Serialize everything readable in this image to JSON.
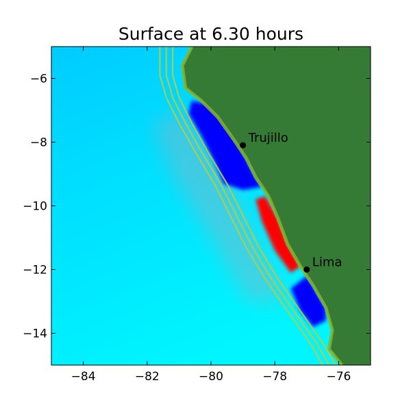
{
  "title": "Surface at 6.30 hours",
  "chart_data": {
    "type": "heatmap",
    "title": "Surface at 6.30 hours",
    "xlabel": "",
    "ylabel": "",
    "xlim": [
      -85,
      -75
    ],
    "ylim": [
      -15,
      -5
    ],
    "x_ticks": [
      -84,
      -82,
      -80,
      -78,
      -76
    ],
    "y_ticks": [
      -6,
      -8,
      -10,
      -12,
      -14
    ],
    "x_tick_labels": [
      "−84",
      "−82",
      "−80",
      "−78",
      "−76"
    ],
    "y_tick_labels": [
      "−6",
      "−8",
      "−10",
      "−12",
      "−14"
    ],
    "grid": false,
    "colors": {
      "land": "#357a35",
      "deep_ocean": "#00cbff",
      "shallow_ocean": "#00f5ff",
      "trough": "#0000ff",
      "crest": "#ff0000",
      "contour": "#b8cc3c"
    },
    "cities": [
      {
        "name": "Trujillo",
        "lon": -79.0,
        "lat": -8.1
      },
      {
        "name": "Lima",
        "lon": -77.0,
        "lat": -12.0
      }
    ],
    "coastline": [
      [
        -80.6,
        -5.0
      ],
      [
        -80.9,
        -5.6
      ],
      [
        -80.8,
        -6.3
      ],
      [
        -80.3,
        -6.7
      ],
      [
        -79.8,
        -7.2
      ],
      [
        -79.3,
        -7.9
      ],
      [
        -78.9,
        -8.5
      ],
      [
        -78.6,
        -9.1
      ],
      [
        -78.2,
        -9.7
      ],
      [
        -77.9,
        -10.4
      ],
      [
        -77.6,
        -11.2
      ],
      [
        -77.2,
        -11.9
      ],
      [
        -76.8,
        -12.5
      ],
      [
        -76.4,
        -13.2
      ],
      [
        -76.2,
        -13.9
      ],
      [
        -76.3,
        -14.5
      ],
      [
        -75.9,
        -15.0
      ]
    ],
    "trough_north": [
      [
        -80.6,
        -6.7
      ],
      [
        -80.1,
        -6.8
      ],
      [
        -79.6,
        -7.3
      ],
      [
        -79.2,
        -7.9
      ],
      [
        -78.9,
        -8.5
      ],
      [
        -78.6,
        -9.1
      ],
      [
        -78.4,
        -9.4
      ],
      [
        -79.0,
        -9.5
      ],
      [
        -79.6,
        -9.3
      ],
      [
        -79.9,
        -8.6
      ],
      [
        -80.3,
        -7.8
      ],
      [
        -80.7,
        -7.1
      ]
    ],
    "crest_zone": [
      [
        -78.3,
        -9.7
      ],
      [
        -77.9,
        -10.4
      ],
      [
        -77.6,
        -11.2
      ],
      [
        -77.2,
        -11.9
      ],
      [
        -77.5,
        -12.1
      ],
      [
        -78.0,
        -11.4
      ],
      [
        -78.4,
        -10.5
      ],
      [
        -78.6,
        -9.8
      ]
    ],
    "trough_south": [
      [
        -77.0,
        -12.2
      ],
      [
        -76.8,
        -12.5
      ],
      [
        -76.4,
        -13.2
      ],
      [
        -76.4,
        -13.6
      ],
      [
        -76.8,
        -13.8
      ],
      [
        -77.2,
        -13.3
      ],
      [
        -77.5,
        -12.6
      ]
    ],
    "contour_lines": [
      [
        [
          -81.6,
          -5.0
        ],
        [
          -81.6,
          -5.9
        ],
        [
          -81.4,
          -6.6
        ],
        [
          -81.0,
          -7.4
        ],
        [
          -80.5,
          -8.3
        ],
        [
          -79.9,
          -9.3
        ],
        [
          -79.4,
          -10.3
        ],
        [
          -78.9,
          -11.3
        ],
        [
          -78.3,
          -12.3
        ],
        [
          -77.6,
          -13.3
        ],
        [
          -76.9,
          -14.3
        ],
        [
          -76.5,
          -15.0
        ]
      ],
      [
        [
          -81.4,
          -5.0
        ],
        [
          -81.4,
          -5.9
        ],
        [
          -81.2,
          -6.6
        ],
        [
          -80.8,
          -7.4
        ],
        [
          -80.3,
          -8.3
        ],
        [
          -79.7,
          -9.3
        ],
        [
          -79.2,
          -10.3
        ],
        [
          -78.7,
          -11.3
        ],
        [
          -78.1,
          -12.3
        ],
        [
          -77.4,
          -13.3
        ],
        [
          -76.7,
          -14.3
        ],
        [
          -76.3,
          -15.0
        ]
      ],
      [
        [
          -81.2,
          -5.0
        ],
        [
          -81.2,
          -5.9
        ],
        [
          -81.0,
          -6.6
        ],
        [
          -80.6,
          -7.4
        ],
        [
          -80.1,
          -8.3
        ],
        [
          -79.5,
          -9.3
        ],
        [
          -79.0,
          -10.3
        ],
        [
          -78.5,
          -11.3
        ],
        [
          -77.9,
          -12.3
        ],
        [
          -77.2,
          -13.3
        ],
        [
          -76.5,
          -14.3
        ],
        [
          -76.1,
          -15.0
        ]
      ]
    ]
  }
}
